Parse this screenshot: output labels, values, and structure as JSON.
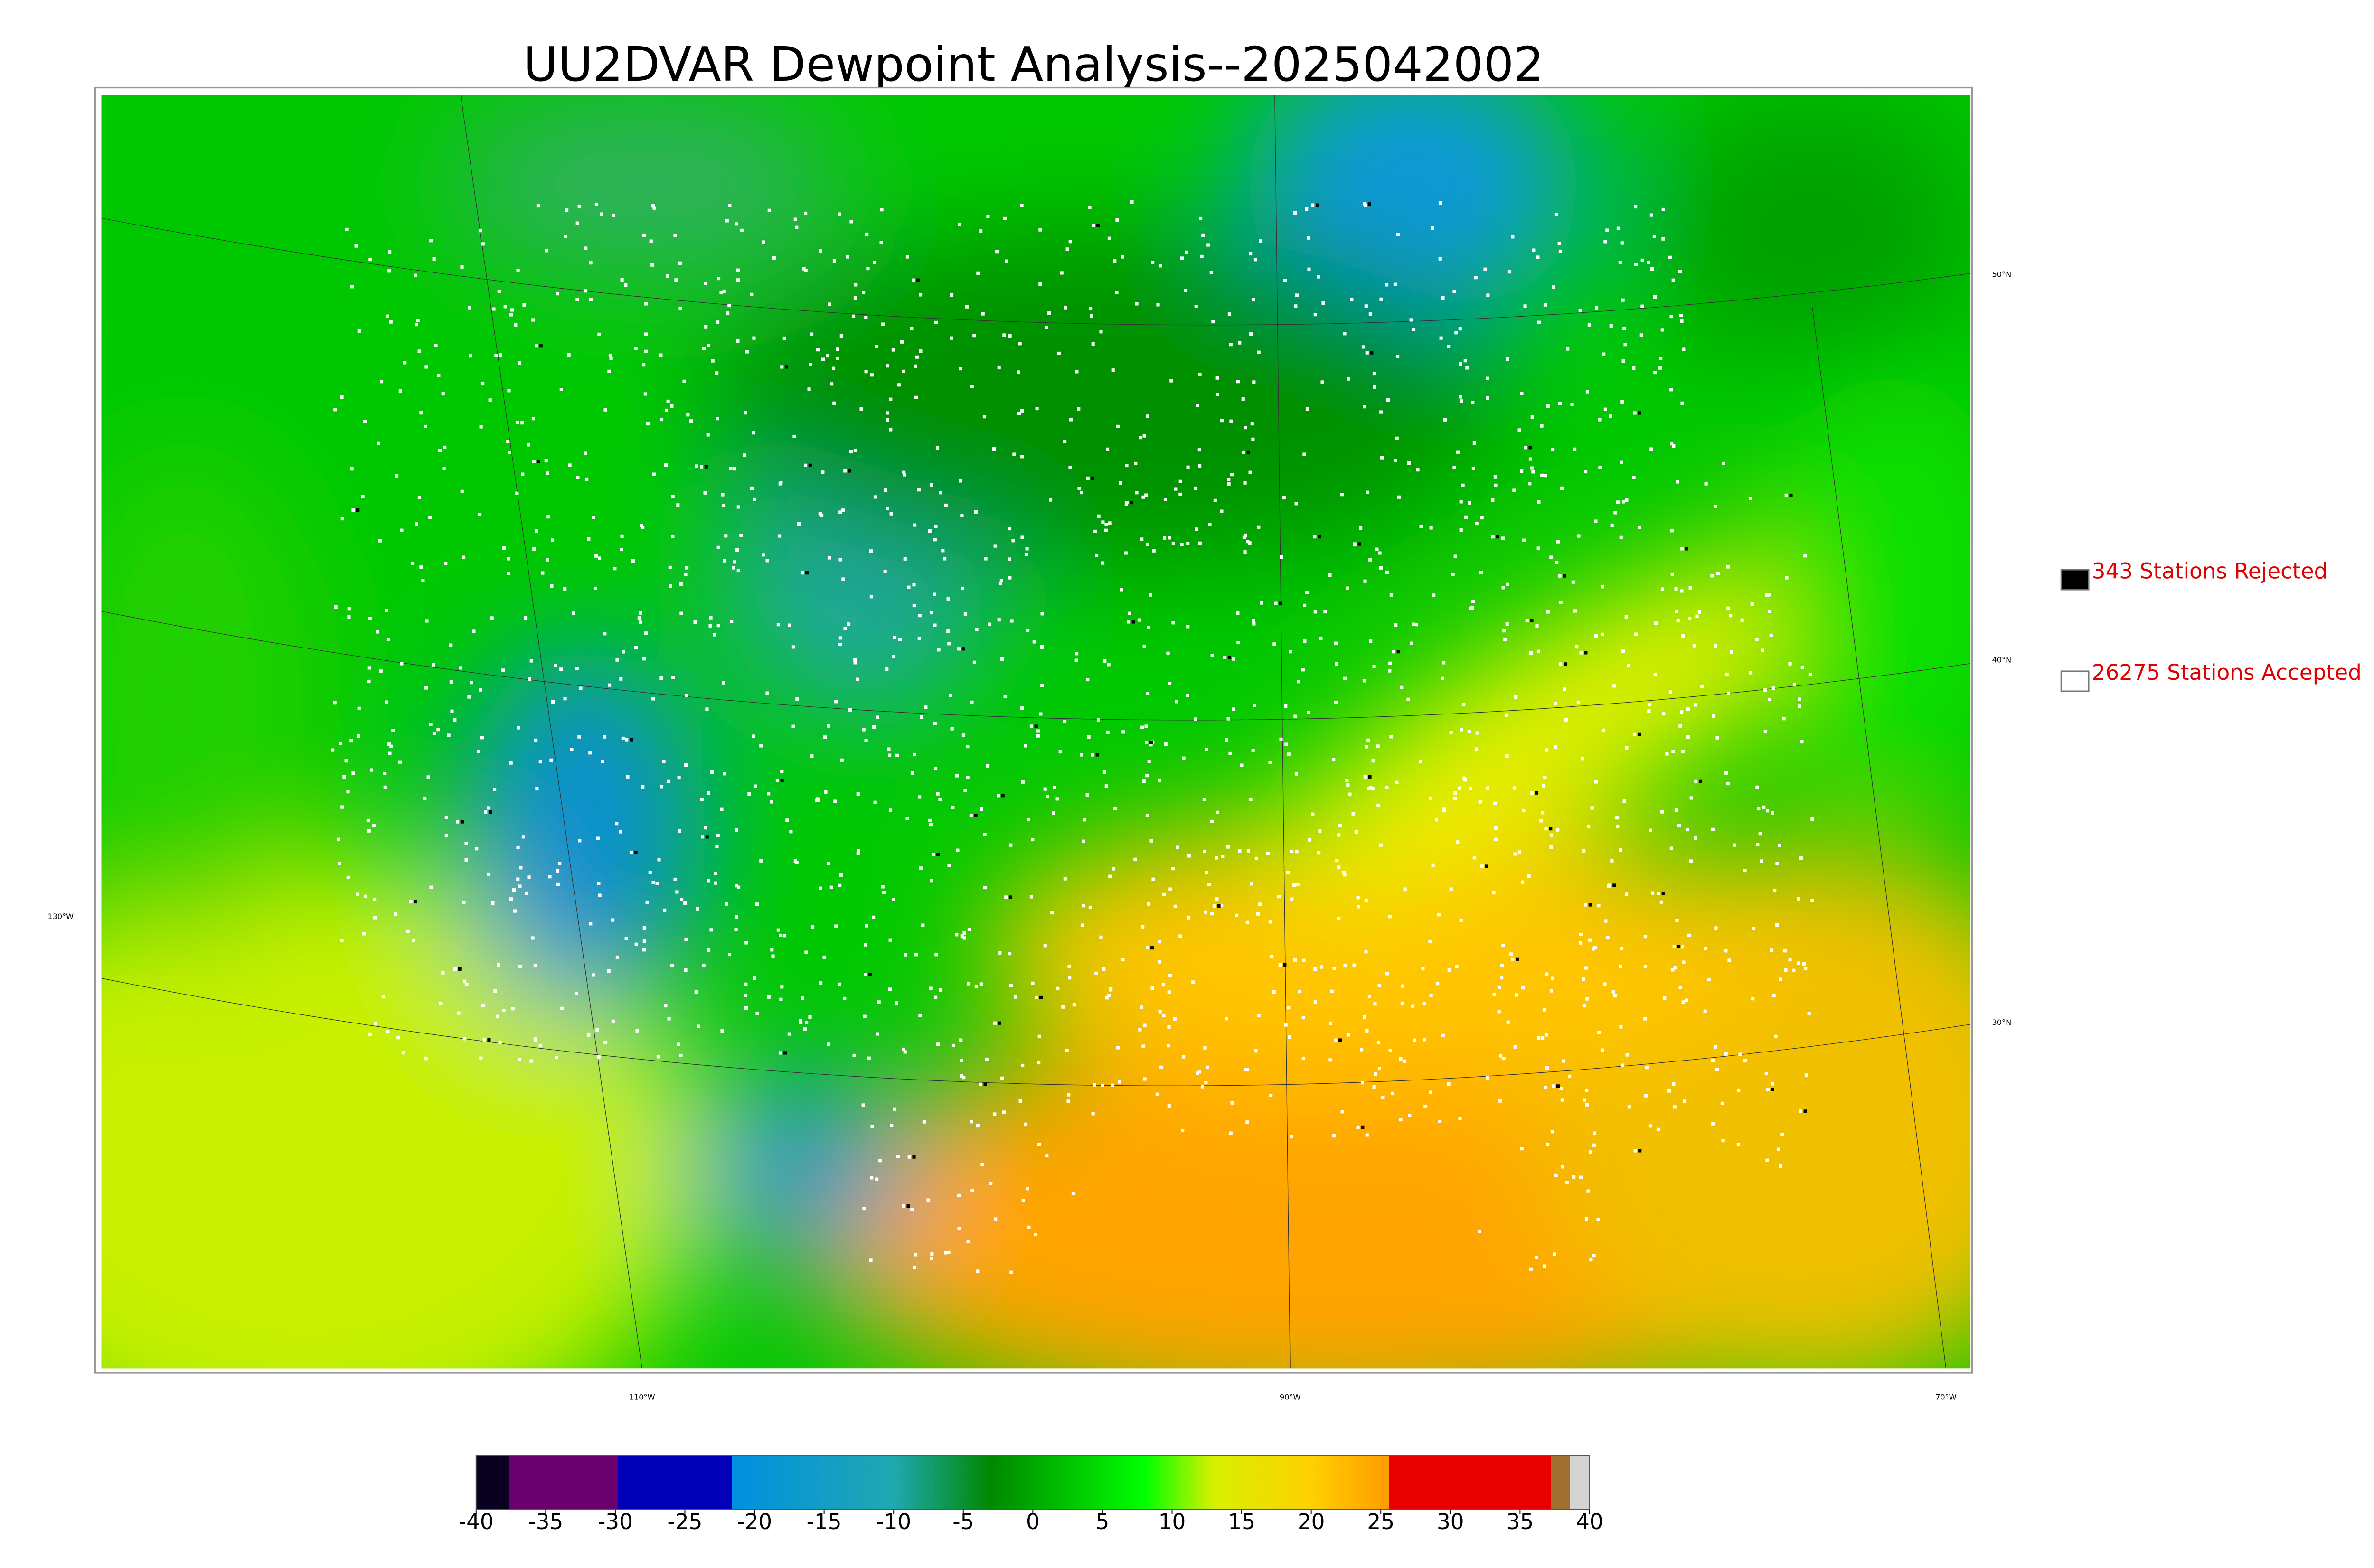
{
  "title": "UU2DVAR Dewpoint Analysis--2025042002",
  "legend": [
    {
      "label": "343 Stations Rejected",
      "color": "#000000"
    },
    {
      "label": "26275 Stations Accepted",
      "color": "#ffffff"
    }
  ],
  "graticule": {
    "lat_labels": [
      "50°N",
      "40°N",
      "30°N"
    ],
    "lon_labels": [
      "130°W",
      "110°W",
      "90°W",
      "70°W"
    ]
  },
  "colorbar": {
    "lim": [
      -40,
      40
    ],
    "ticks": [
      -40,
      -35,
      -30,
      -25,
      -20,
      -15,
      -10,
      -5,
      0,
      5,
      10,
      15,
      20,
      25,
      30,
      35,
      40
    ],
    "stops": [
      {
        "value": -40,
        "color": "#0a0020"
      },
      {
        "value": -37.6,
        "color": "#0a0020"
      },
      {
        "value": -37.6,
        "color": "#6a0070"
      },
      {
        "value": -29.8,
        "color": "#6a0070"
      },
      {
        "value": -29.8,
        "color": "#0000b8"
      },
      {
        "value": -21.6,
        "color": "#0000b8"
      },
      {
        "value": -21.6,
        "color": "#0090e0"
      },
      {
        "value": -10,
        "color": "#20a8b0"
      },
      {
        "value": -3,
        "color": "#008800"
      },
      {
        "value": 8,
        "color": "#00ff00"
      },
      {
        "value": 13,
        "color": "#d8f000"
      },
      {
        "value": 20,
        "color": "#ffd000"
      },
      {
        "value": 25.6,
        "color": "#ff9c00"
      },
      {
        "value": 25.6,
        "color": "#e80000"
      },
      {
        "value": 37.2,
        "color": "#e80000"
      },
      {
        "value": 37.2,
        "color": "#a07030"
      },
      {
        "value": 38.6,
        "color": "#a07030"
      },
      {
        "value": 38.6,
        "color": "#d4d4d4"
      },
      {
        "value": 40,
        "color": "#d4d4d4"
      }
    ]
  }
}
